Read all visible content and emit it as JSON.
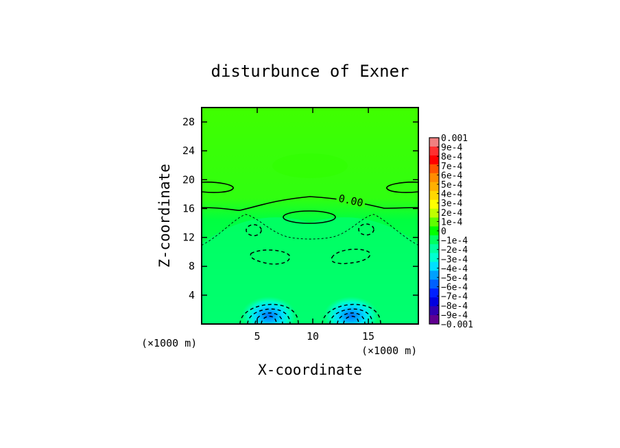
{
  "chart_data": {
    "type": "heatmap",
    "title": "disturbunce of Exner",
    "xlabel": "X-coordinate",
    "ylabel": "Z-coordinate",
    "x_unit_label": "(×1000 m)",
    "y_unit_label": "(×1000 m)",
    "xlim": [
      0,
      19.5
    ],
    "ylim": [
      0,
      30
    ],
    "x_ticks": [
      5,
      10,
      15
    ],
    "y_ticks": [
      4,
      8,
      12,
      16,
      20,
      24,
      28
    ],
    "grid": false,
    "contour_label": "0.00",
    "colorbar": {
      "labels": [
        "0.001",
        "9e-4",
        "8e-4",
        "7e-4",
        "6e-4",
        "5e-4",
        "4e-4",
        "3e-4",
        "2e-4",
        "1e-4",
        "0",
        "−1e-4",
        "−2e-4",
        "−3e-4",
        "−4e-4",
        "−5e-4",
        "−6e-4",
        "−7e-4",
        "−8e-4",
        "−9e-4",
        "−0.001"
      ],
      "colors": [
        "#f08080",
        "#ff3030",
        "#ff0000",
        "#ff5500",
        "#ff8c00",
        "#ffb000",
        "#ffd700",
        "#ffff00",
        "#c0ff00",
        "#60ff00",
        "#00ff00",
        "#00ff60",
        "#00ffa0",
        "#00ffd0",
        "#00e0ff",
        "#00a0ff",
        "#0060ff",
        "#0020ff",
        "#0000e0",
        "#3000b0",
        "#600090"
      ]
    },
    "field_features": [
      {
        "feature": "background",
        "value": 4e-05
      },
      {
        "feature": "minimum",
        "x": 6.2,
        "z": 1.2,
        "value": -0.0006
      },
      {
        "feature": "minimum",
        "x": 13.8,
        "z": 1.2,
        "value": -0.0006
      },
      {
        "feature": "zero_contour_level_z",
        "value": 16
      }
    ]
  }
}
